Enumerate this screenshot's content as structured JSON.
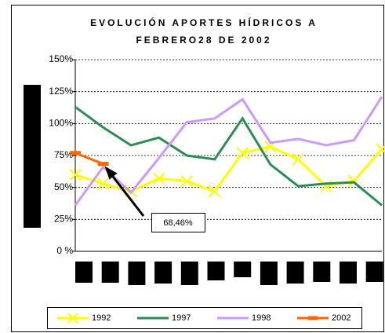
{
  "chart_data": {
    "type": "line",
    "title": [
      "EVOLUCIÓN APORTES HÍDRICOS A",
      "FEBRERO28 DE 2002"
    ],
    "categories": [
      null,
      null,
      null,
      null,
      null,
      null,
      null,
      null,
      null,
      null,
      null,
      null
    ],
    "series": [
      {
        "name": "1992",
        "color": "#ffff00",
        "marker": "x",
        "values": [
          60,
          53,
          47,
          57,
          55,
          47,
          77,
          82,
          72,
          51,
          55,
          80
        ]
      },
      {
        "name": "1997",
        "color": "#2e8b57",
        "values": [
          113,
          97,
          83,
          89,
          75,
          72,
          104,
          68,
          51,
          53,
          54,
          36
        ]
      },
      {
        "name": "1998",
        "color": "#cc99ff",
        "values": [
          36,
          66,
          46,
          73,
          101,
          104,
          119,
          85,
          88,
          83,
          87,
          121
        ]
      },
      {
        "name": "2002",
        "color": "#ff6600",
        "marker": "dash",
        "values": [
          77,
          68.46,
          null,
          null,
          null,
          null,
          null,
          null,
          null,
          null,
          null,
          null
        ]
      }
    ],
    "annotation": "68,46%",
    "ylim": [
      0,
      150
    ],
    "yticks": [
      {
        "value": 0,
        "label": "0 %"
      },
      {
        "value": 25,
        "label": "25%"
      },
      {
        "value": 50,
        "label": "50%"
      },
      {
        "value": 75,
        "label": "75%"
      },
      {
        "value": 100,
        "label": "100%"
      },
      {
        "value": 125,
        "label": "125%"
      },
      {
        "value": 150,
        "label": "150%"
      }
    ],
    "grid": true
  }
}
